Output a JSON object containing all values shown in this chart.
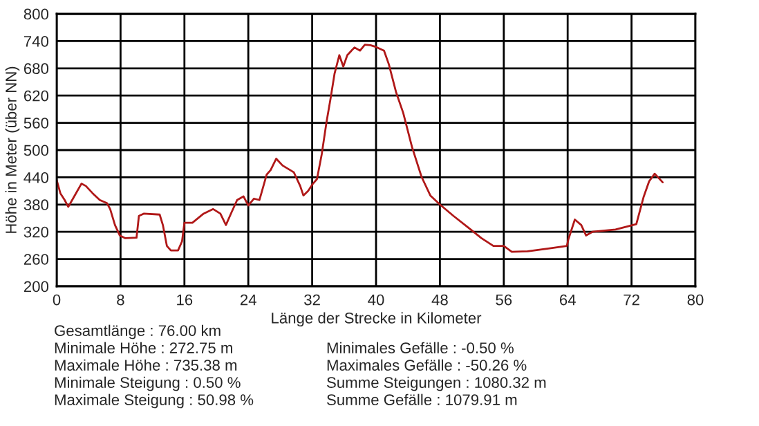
{
  "chart_data": {
    "type": "line",
    "xlabel": "Länge der Strecke in Kilometer",
    "ylabel": "Höhe in Meter (über NN)",
    "xlim": [
      0,
      80
    ],
    "xticks": [
      0,
      8,
      16,
      24,
      32,
      40,
      48,
      56,
      64,
      72,
      80
    ],
    "ylim": [
      200,
      800
    ],
    "yticks": [
      200,
      260,
      320,
      380,
      440,
      500,
      560,
      620,
      680,
      740,
      800
    ],
    "grid": true,
    "legend": false,
    "series": [
      {
        "color": "#b01818",
        "x": [
          0,
          0.46,
          1.0,
          1.45,
          2.1,
          3.1,
          3.65,
          4.5,
          5.4,
          6.3,
          6.7,
          7.3,
          7.9,
          8.6,
          10.0,
          10.3,
          10.9,
          12.9,
          13.3,
          13.8,
          14.3,
          15.2,
          15.7,
          16.0,
          17.0,
          18.4,
          19.6,
          20.5,
          21.2,
          21.9,
          22.6,
          23.4,
          24.0,
          24.7,
          25.4,
          26.3,
          26.8,
          27.5,
          28.3,
          29.7,
          30.5,
          30.9,
          31.5,
          32.1,
          32.6,
          33.2,
          33.8,
          34.3,
          34.8,
          35.4,
          35.9,
          36.4,
          37.3,
          38.0,
          38.6,
          39.3,
          40.0,
          41.0,
          41.6,
          42.5,
          43.4,
          44.5,
          45.7,
          46.8,
          48.0,
          49.7,
          51.5,
          53.2,
          54.7,
          56.0,
          57.0,
          59.0,
          61.9,
          63.9,
          64.1,
          64.9,
          65.7,
          66.3,
          67.1,
          70.0,
          72.6,
          73.5,
          74.2,
          74.9,
          75.9
        ],
        "values": [
          434,
          405,
          390,
          375,
          395,
          426,
          421,
          405,
          390,
          383,
          370,
          335,
          312,
          306,
          307,
          355,
          360,
          358,
          335,
          289,
          279,
          279,
          299,
          340,
          340,
          360,
          370,
          360,
          335,
          363,
          390,
          398,
          378,
          393,
          390,
          446,
          456,
          481,
          466,
          451,
          421,
          400,
          410,
          426,
          436,
          491,
          562,
          613,
          668,
          709,
          684,
          709,
          726,
          719,
          732,
          731,
          727,
          719,
          689,
          628,
          582,
          507,
          441,
          400,
          380,
          355,
          330,
          306,
          289,
          289,
          276,
          277,
          284,
          289,
          304,
          347,
          335,
          312,
          320,
          325,
          337,
          396,
          431,
          448,
          429
        ]
      }
    ],
    "annotations": [
      "Gesamtlänge : 76.00 km",
      "Minimale Höhe : 272.75 m",
      "Maximale Höhe : 735.38 m",
      "Minimale Steigung : 0.50 %",
      "Maximale Steigung : 50.98 %",
      "Minimales Gefälle : -0.50 %",
      "Maximales Gefälle : -50.26 %",
      "Summe Steigungen : 1080.32 m",
      "Summe Gefälle : 1079.91 m"
    ]
  }
}
